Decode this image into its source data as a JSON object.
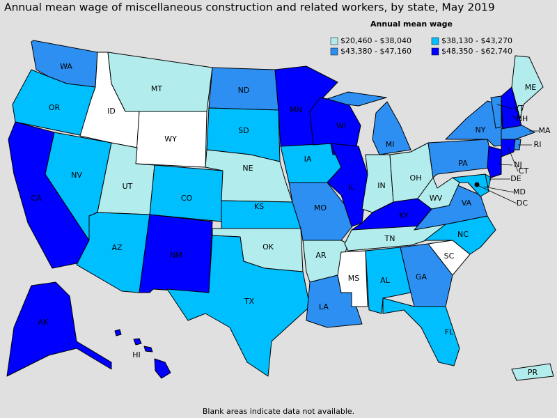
{
  "title": "Annual mean wage of miscellaneous construction and related workers, by state, May 2019",
  "legend": {
    "title": "Annual mean wage",
    "items": [
      {
        "label": "$20,460 - $38,040",
        "color": "#b2ecec"
      },
      {
        "label": "$38,130 - $43,270",
        "color": "#00bfff"
      },
      {
        "label": "$43,380 - $47,160",
        "color": "#2d8ff2"
      },
      {
        "label": "$48,350 - $62,740",
        "color": "#0000ff"
      }
    ]
  },
  "states": [
    {
      "abbr": "WA",
      "color": "#2d8ff2"
    },
    {
      "abbr": "OR",
      "color": "#00bfff"
    },
    {
      "abbr": "CA",
      "color": "#0000ff"
    },
    {
      "abbr": "NV",
      "color": "#00bfff"
    },
    {
      "abbr": "ID",
      "color": "#ffffff"
    },
    {
      "abbr": "MT",
      "color": "#b2ecec"
    },
    {
      "abbr": "WY",
      "color": "#ffffff"
    },
    {
      "abbr": "UT",
      "color": "#b2ecec"
    },
    {
      "abbr": "CO",
      "color": "#00bfff"
    },
    {
      "abbr": "AZ",
      "color": "#00bfff"
    },
    {
      "abbr": "NM",
      "color": "#0000ff"
    },
    {
      "abbr": "ND",
      "color": "#2d8ff2"
    },
    {
      "abbr": "SD",
      "color": "#00bfff"
    },
    {
      "abbr": "NE",
      "color": "#b2ecec"
    },
    {
      "abbr": "KS",
      "color": "#00bfff"
    },
    {
      "abbr": "OK",
      "color": "#b2ecec"
    },
    {
      "abbr": "TX",
      "color": "#00bfff"
    },
    {
      "abbr": "MN",
      "color": "#0000ff"
    },
    {
      "abbr": "IA",
      "color": "#00bfff"
    },
    {
      "abbr": "MO",
      "color": "#2d8ff2"
    },
    {
      "abbr": "AR",
      "color": "#b2ecec"
    },
    {
      "abbr": "LA",
      "color": "#2d8ff2"
    },
    {
      "abbr": "WI",
      "color": "#0000ff"
    },
    {
      "abbr": "IL",
      "color": "#0000ff"
    },
    {
      "abbr": "MI",
      "color": "#2d8ff2"
    },
    {
      "abbr": "IN",
      "color": "#b2ecec"
    },
    {
      "abbr": "OH",
      "color": "#b2ecec"
    },
    {
      "abbr": "KY",
      "color": "#0000ff"
    },
    {
      "abbr": "TN",
      "color": "#b2ecec"
    },
    {
      "abbr": "MS",
      "color": "#ffffff"
    },
    {
      "abbr": "AL",
      "color": "#00bfff"
    },
    {
      "abbr": "GA",
      "color": "#2d8ff2"
    },
    {
      "abbr": "FL",
      "color": "#00bfff"
    },
    {
      "abbr": "SC",
      "color": "#ffffff"
    },
    {
      "abbr": "NC",
      "color": "#00bfff"
    },
    {
      "abbr": "VA",
      "color": "#2d8ff2"
    },
    {
      "abbr": "WV",
      "color": "#b2ecec"
    },
    {
      "abbr": "PA",
      "color": "#2d8ff2"
    },
    {
      "abbr": "NY",
      "color": "#2d8ff2"
    },
    {
      "abbr": "VT",
      "color": "#2d8ff2"
    },
    {
      "abbr": "NH",
      "color": "#0000ff"
    },
    {
      "abbr": "ME",
      "color": "#b2ecec"
    },
    {
      "abbr": "MA",
      "color": "#2d8ff2"
    },
    {
      "abbr": "CT",
      "color": "#0000ff"
    },
    {
      "abbr": "RI",
      "color": "#2d8ff2"
    },
    {
      "abbr": "NJ",
      "color": "#0000ff"
    },
    {
      "abbr": "DE",
      "color": "#00bfff"
    },
    {
      "abbr": "MD",
      "color": "#00bfff"
    },
    {
      "abbr": "DC",
      "color": "#000000"
    },
    {
      "abbr": "AK",
      "color": "#0000ff"
    },
    {
      "abbr": "HI",
      "color": "#0000ff"
    },
    {
      "abbr": "PR",
      "color": "#b2ecec"
    }
  ],
  "footnote": "Blank areas indicate data not available."
}
